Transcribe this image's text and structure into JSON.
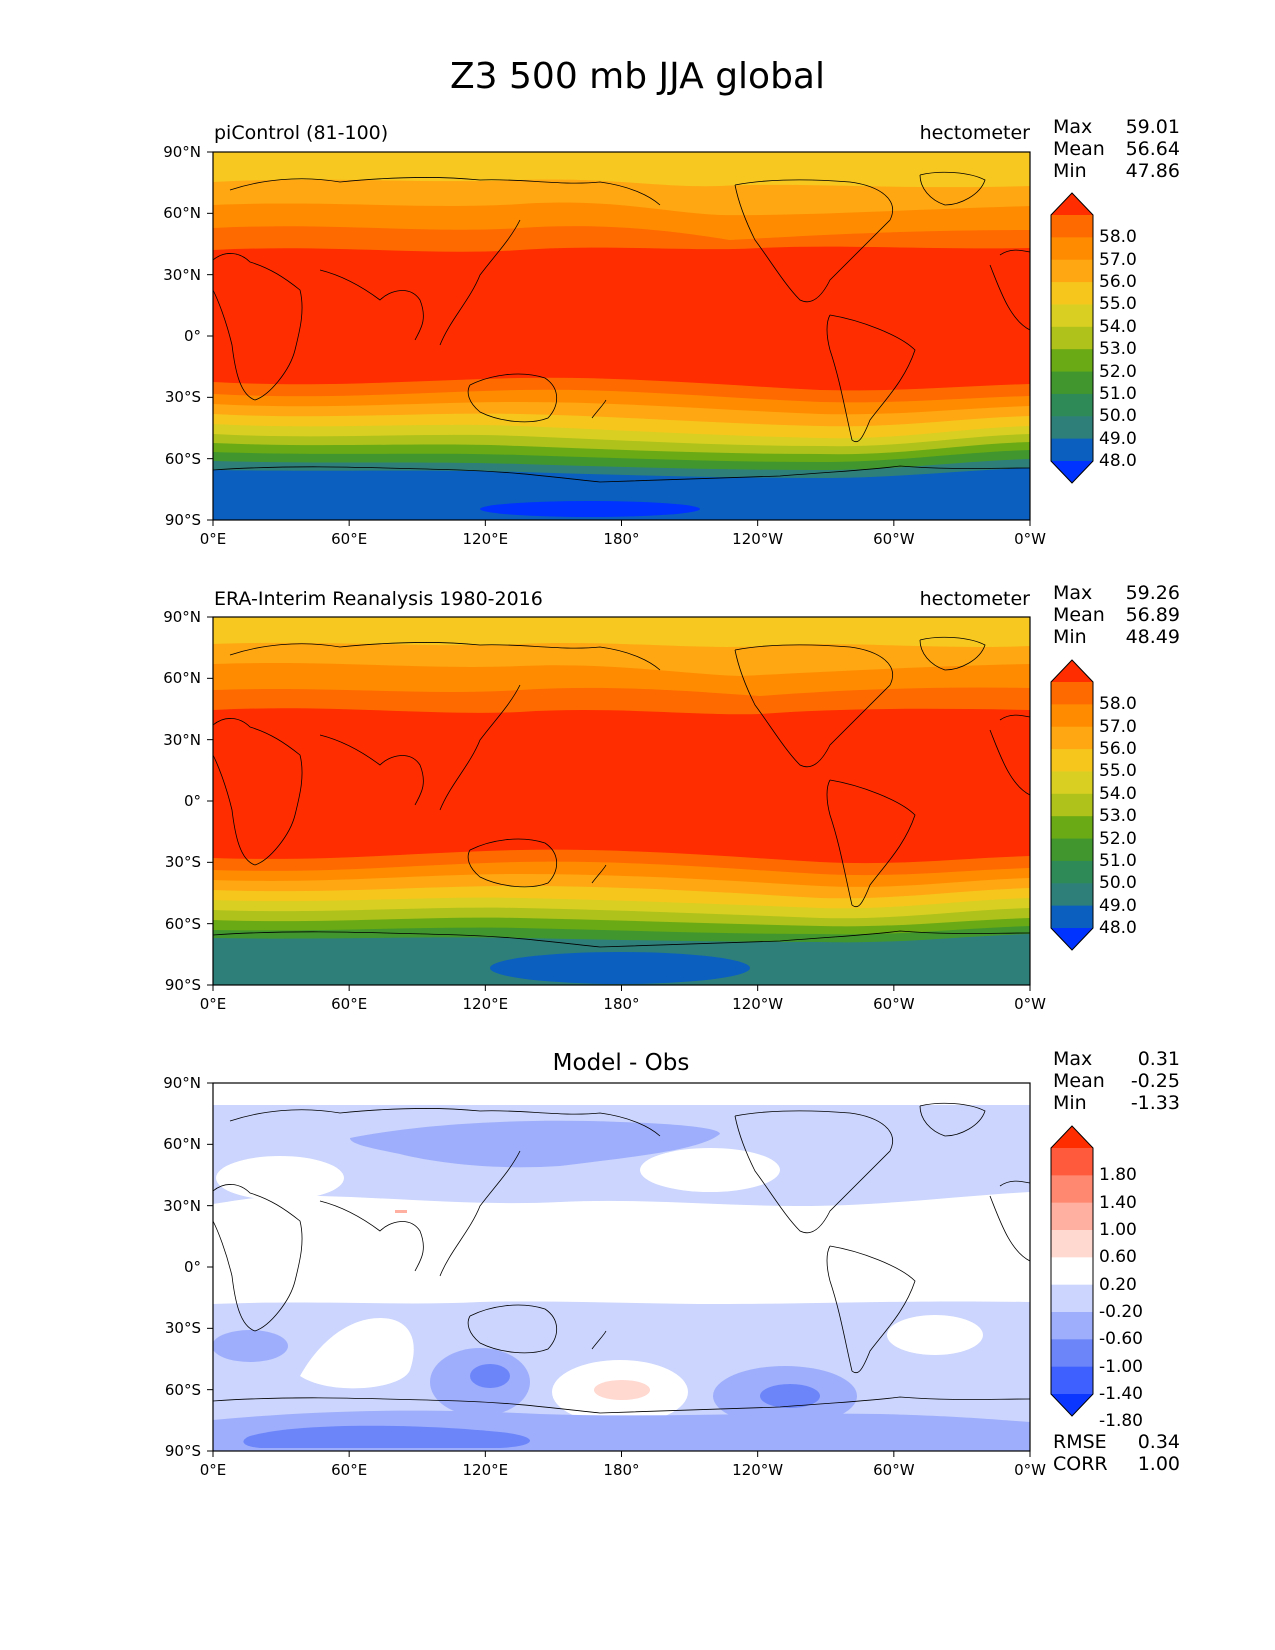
{
  "figure": {
    "title": "Z3 500 mb JJA global"
  },
  "axes": {
    "y_ticks": [
      "90°N",
      "60°N",
      "30°N",
      "0°",
      "30°S",
      "60°S",
      "90°S"
    ],
    "x_ticks": [
      "0°E",
      "60°E",
      "120°E",
      "180°",
      "120°W",
      "60°W",
      "0°W"
    ]
  },
  "panels": [
    {
      "left_label": "piControl (81-100)",
      "right_label": "hectometer",
      "center_label": "",
      "stats": [
        {
          "name": "Max",
          "value": "59.01"
        },
        {
          "name": "Mean",
          "value": "56.64"
        },
        {
          "name": "Min",
          "value": "47.86"
        }
      ],
      "colorbar": {
        "labels": [
          "58.0",
          "57.0",
          "56.0",
          "55.0",
          "54.0",
          "53.0",
          "52.0",
          "51.0",
          "50.0",
          "49.0",
          "48.0"
        ],
        "colors": [
          "#ff2d00",
          "#ff6a00",
          "#ff8c00",
          "#ffa712",
          "#f6c61d",
          "#d9cf22",
          "#aec21b",
          "#6aaa14",
          "#41972d",
          "#2e8b57",
          "#2e7f7a",
          "#0a5fbf",
          "#0033ff"
        ]
      }
    },
    {
      "left_label": "ERA-Interim Reanalysis 1980-2016",
      "right_label": "hectometer",
      "center_label": "",
      "stats": [
        {
          "name": "Max",
          "value": "59.26"
        },
        {
          "name": "Mean",
          "value": "56.89"
        },
        {
          "name": "Min",
          "value": "48.49"
        }
      ],
      "colorbar": {
        "labels": [
          "58.0",
          "57.0",
          "56.0",
          "55.0",
          "54.0",
          "53.0",
          "52.0",
          "51.0",
          "50.0",
          "49.0",
          "48.0"
        ],
        "colors": [
          "#ff2d00",
          "#ff6a00",
          "#ff8c00",
          "#ffa712",
          "#f6c61d",
          "#d9cf22",
          "#aec21b",
          "#6aaa14",
          "#41972d",
          "#2e8b57",
          "#2e7f7a",
          "#0a5fbf",
          "#0033ff"
        ]
      }
    },
    {
      "left_label": "",
      "right_label": "",
      "center_label": "Model - Obs",
      "stats": [
        {
          "name": "Max",
          "value": "0.31"
        },
        {
          "name": "Mean",
          "value": "-0.25"
        },
        {
          "name": "Min",
          "value": "-1.33"
        }
      ],
      "extra_stats": [
        {
          "name": "RMSE",
          "value": "0.34"
        },
        {
          "name": "CORR",
          "value": "1.00"
        }
      ],
      "colorbar": {
        "labels": [
          "1.80",
          "1.40",
          "1.00",
          "0.60",
          "0.20",
          "-0.20",
          "-0.60",
          "-1.00",
          "-1.40",
          "-1.80"
        ],
        "colors": [
          "#ff2d00",
          "#ff5a3c",
          "#ff8870",
          "#ffb0a0",
          "#ffd8d0",
          "#ffffff",
          "#cbd5fd",
          "#9eaefc",
          "#6c86fa",
          "#3e60ff",
          "#0a36ff"
        ]
      }
    }
  ]
}
